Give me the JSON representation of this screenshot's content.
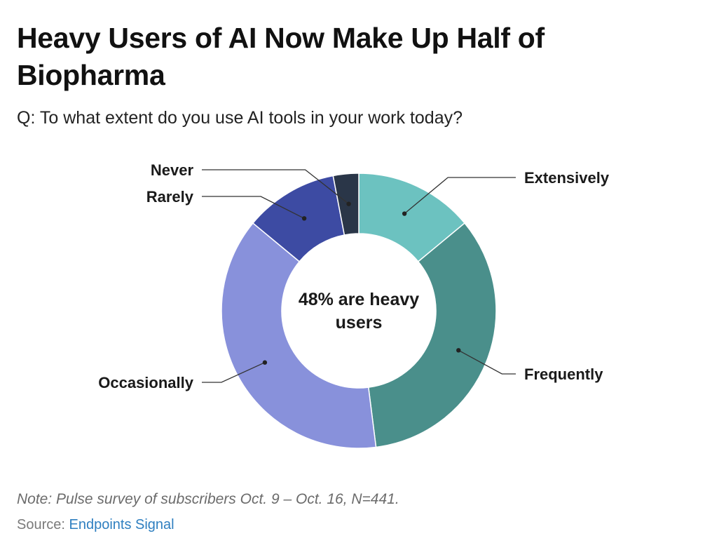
{
  "header": {
    "title": "Heavy Users of AI Now Make Up Half of Biopharma",
    "subtitle": "Q: To what extent do you use AI tools in your work today?"
  },
  "chart_data": {
    "type": "pie",
    "variant": "donut",
    "center_label": "48% are heavy users",
    "categories": [
      "Extensively",
      "Frequently",
      "Occasionally",
      "Rarely",
      "Never"
    ],
    "values": [
      14,
      34,
      38,
      11,
      3
    ],
    "colors": [
      "#6cc2c0",
      "#4a8f8b",
      "#8891db",
      "#3d4ba3",
      "#2a3648"
    ],
    "label_sides": [
      "right",
      "right",
      "left",
      "left",
      "left"
    ]
  },
  "footer": {
    "note": "Note: Pulse survey of subscribers Oct. 9 – Oct. 16, N=441.",
    "source_prefix": "Source: ",
    "source_link": "Endpoints Signal"
  }
}
